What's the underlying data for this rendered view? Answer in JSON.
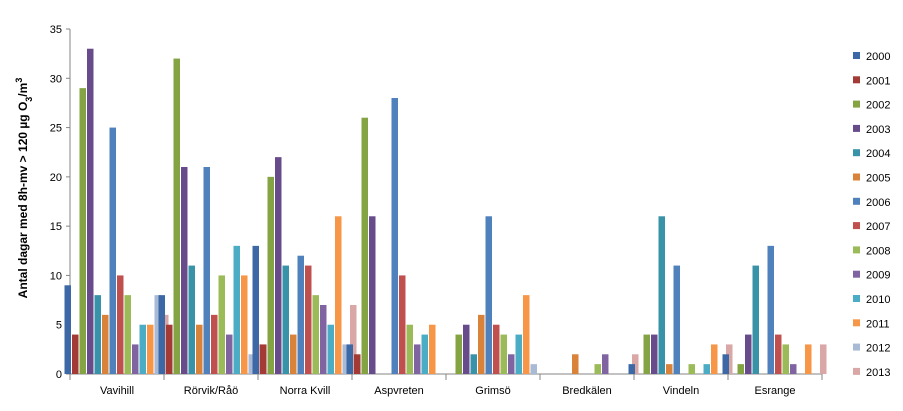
{
  "chart_data": {
    "type": "bar",
    "ylabel_parts": [
      "Antal dagar med 8h-mv > 120 µg O",
      "3",
      "/m",
      "3"
    ],
    "ylim": [
      0,
      35
    ],
    "yticks": [
      0,
      5,
      10,
      15,
      20,
      25,
      30,
      35
    ],
    "grid": false,
    "legend_position": "right",
    "categories": [
      "Vavihill",
      "Rörvik/Råö",
      "Norra Kvill",
      "Aspvreten",
      "Grimsö",
      "Bredkälen",
      "Vindeln",
      "Esrange"
    ],
    "series": [
      {
        "name": "2000",
        "color": "#3c68a5",
        "values": [
          9,
          8,
          13,
          3,
          null,
          null,
          1,
          2
        ]
      },
      {
        "name": "2001",
        "color": "#a33a36",
        "values": [
          4,
          5,
          3,
          2,
          null,
          null,
          null,
          null
        ]
      },
      {
        "name": "2002",
        "color": "#84a342",
        "values": [
          29,
          32,
          20,
          26,
          4,
          null,
          4,
          1
        ]
      },
      {
        "name": "2003",
        "color": "#674b8a",
        "values": [
          33,
          21,
          22,
          16,
          5,
          null,
          4,
          4
        ]
      },
      {
        "name": "2004",
        "color": "#3893a8",
        "values": [
          8,
          11,
          11,
          null,
          2,
          null,
          16,
          11
        ]
      },
      {
        "name": "2005",
        "color": "#d8823a",
        "values": [
          6,
          5,
          4,
          null,
          6,
          2,
          1,
          null
        ]
      },
      {
        "name": "2006",
        "color": "#4f81bd",
        "values": [
          25,
          21,
          12,
          28,
          16,
          null,
          11,
          13
        ]
      },
      {
        "name": "2007",
        "color": "#c0504d",
        "values": [
          10,
          6,
          11,
          10,
          5,
          null,
          null,
          4
        ]
      },
      {
        "name": "2008",
        "color": "#9bbb59",
        "values": [
          8,
          10,
          8,
          5,
          4,
          1,
          1,
          3
        ]
      },
      {
        "name": "2009",
        "color": "#8064a2",
        "values": [
          3,
          4,
          7,
          3,
          2,
          2,
          null,
          1
        ]
      },
      {
        "name": "2010",
        "color": "#4bacc6",
        "values": [
          5,
          13,
          5,
          4,
          4,
          null,
          1,
          null
        ]
      },
      {
        "name": "2011",
        "color": "#f79646",
        "values": [
          5,
          10,
          16,
          5,
          8,
          null,
          3,
          3
        ]
      },
      {
        "name": "2012",
        "color": "#a9bad7",
        "values": [
          8,
          2,
          3,
          null,
          1,
          null,
          null,
          null
        ]
      },
      {
        "name": "2013",
        "color": "#d9a7a6",
        "values": [
          6,
          3,
          7,
          null,
          null,
          2,
          3,
          3
        ]
      }
    ]
  }
}
